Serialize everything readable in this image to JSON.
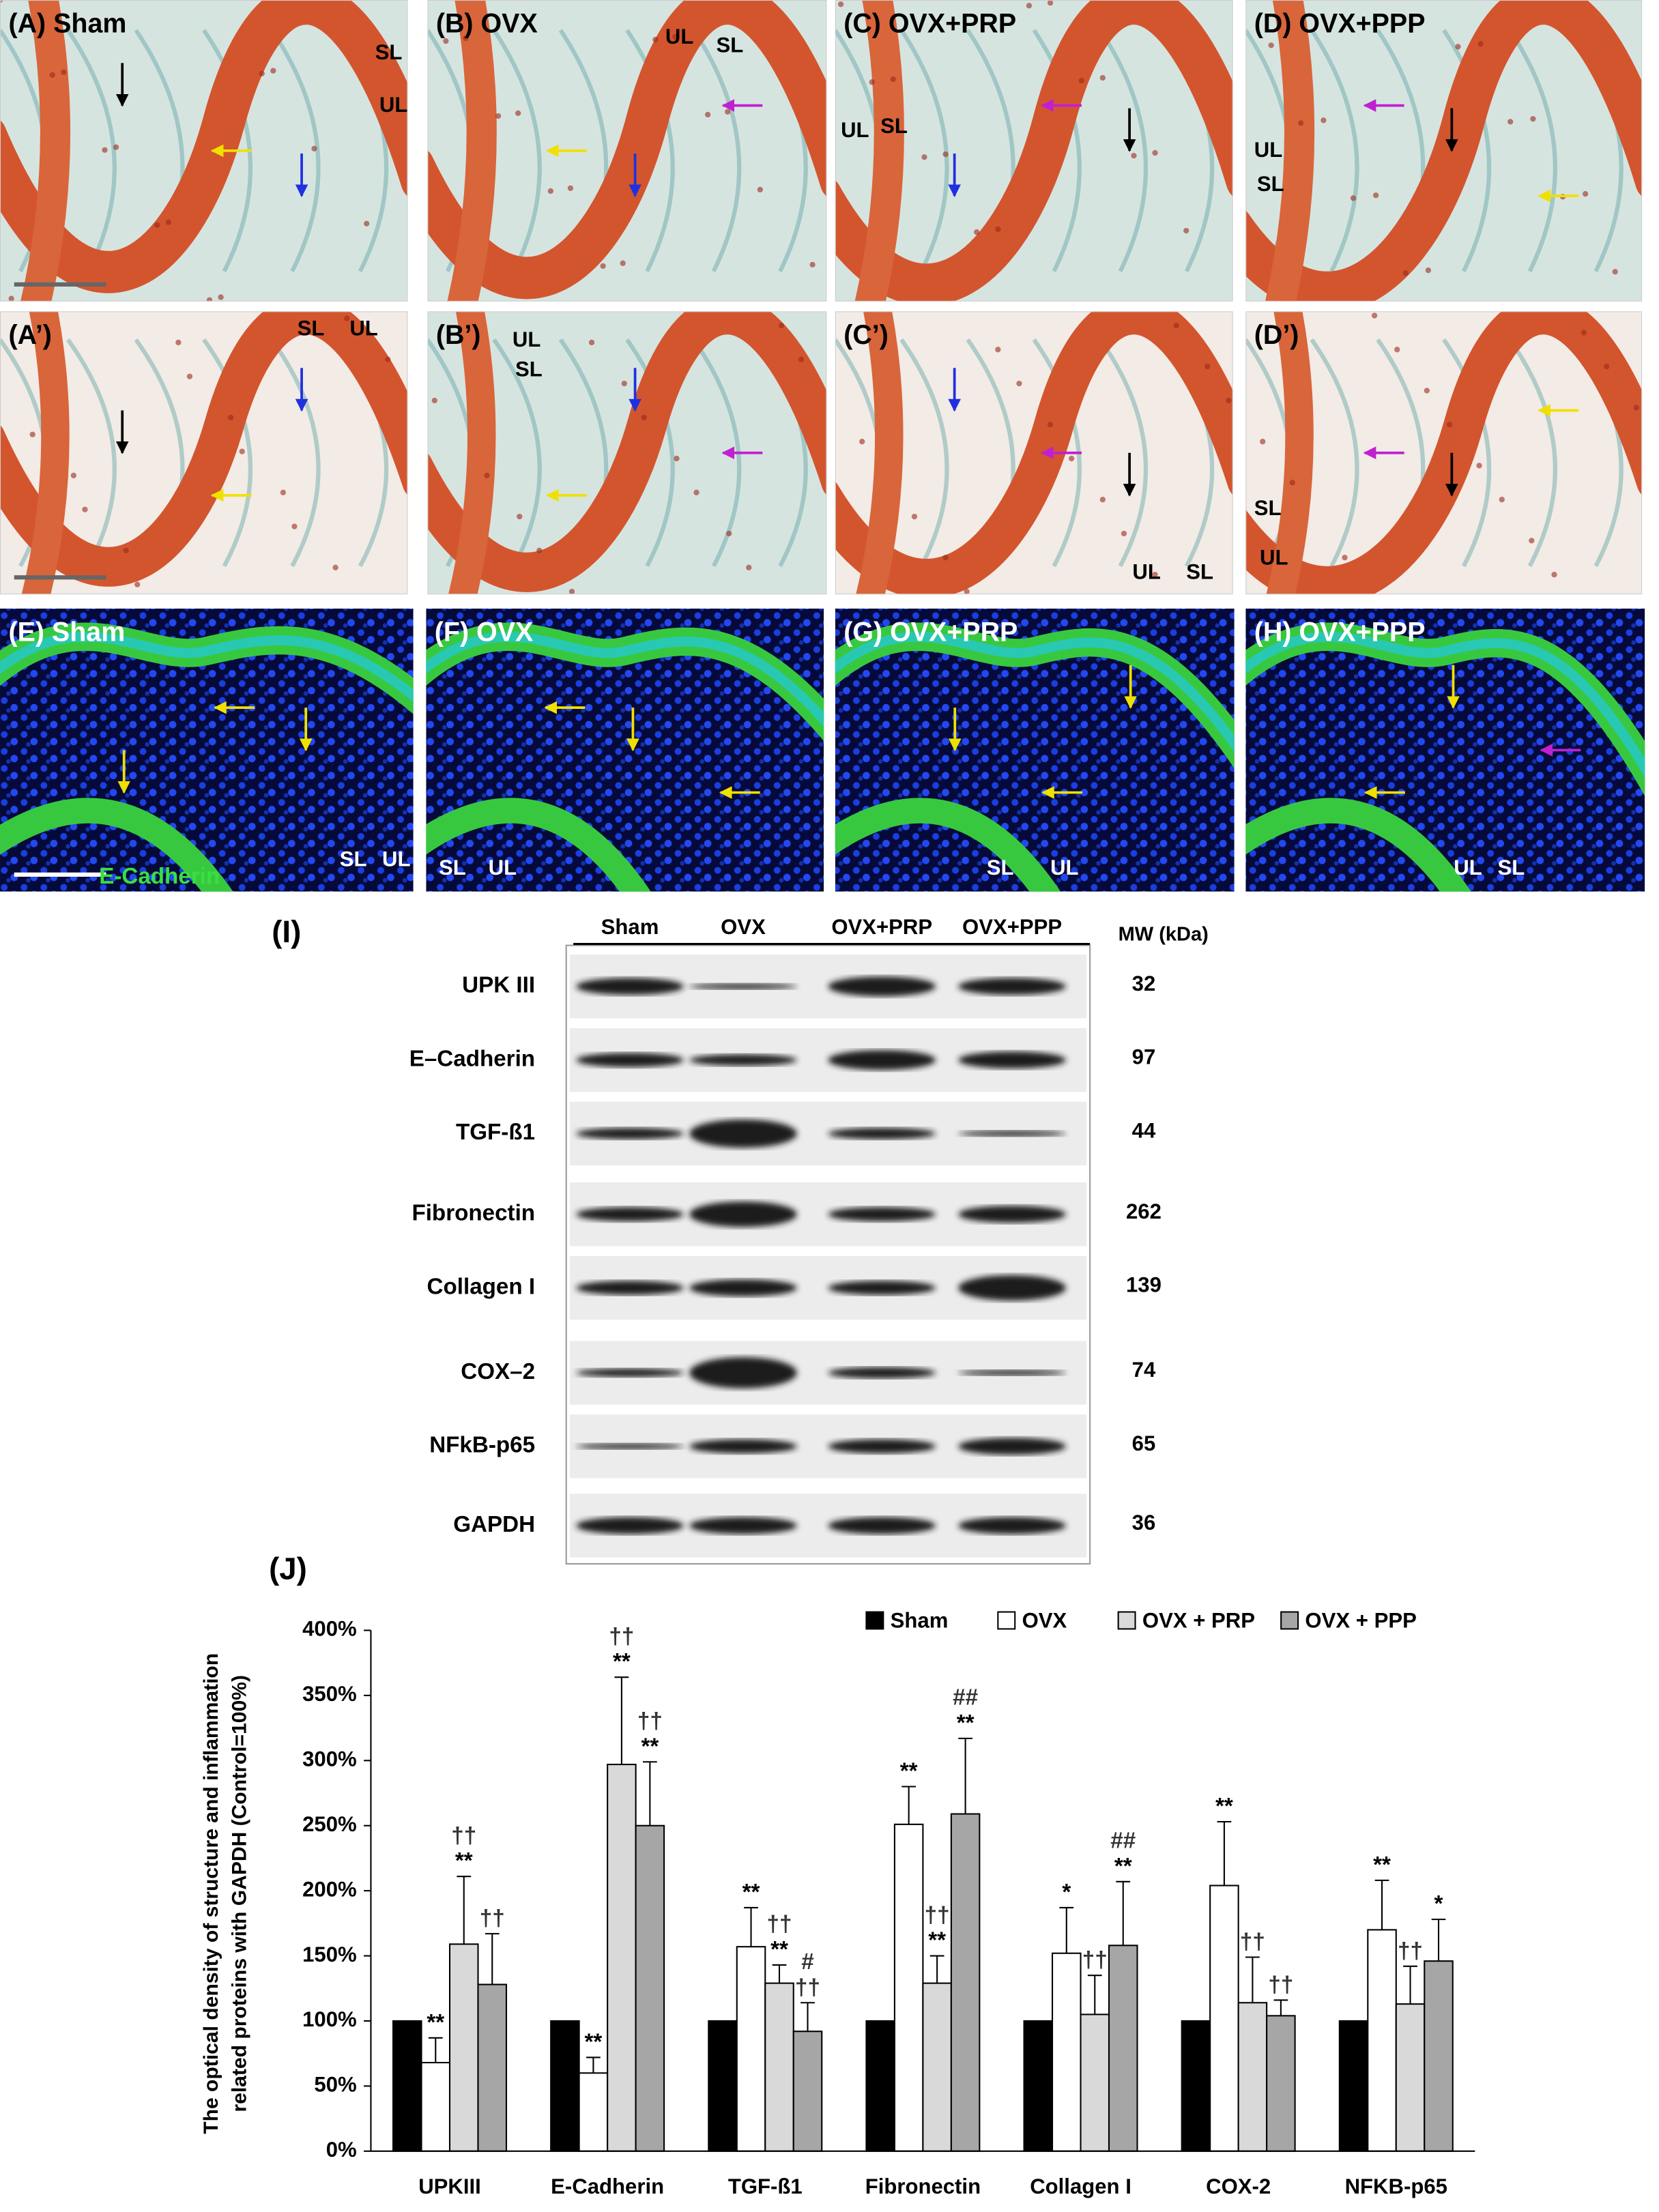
{
  "panels": [
    {
      "label": "(A) Sham",
      "tags": [
        "SL",
        "UL"
      ]
    },
    {
      "label": "(B) OVX",
      "tags": [
        "UL",
        "SL"
      ]
    },
    {
      "label": "(C) OVX+PRP",
      "tags": [
        "UL",
        "SL"
      ]
    },
    {
      "label": "(D) OVX+PPP",
      "tags": [
        "UL",
        "SL"
      ]
    },
    {
      "label": "(A’)",
      "tags": [
        "SL",
        "UL"
      ]
    },
    {
      "label": "(B’)",
      "tags": [
        "UL",
        "SL"
      ]
    },
    {
      "label": "(C’)",
      "tags": [
        "UL",
        "SL"
      ]
    },
    {
      "label": "(D’)",
      "tags": [
        "SL",
        "UL"
      ]
    },
    {
      "label": "(E) Sham",
      "tags": [
        "SL",
        "UL",
        "E-Cadherin"
      ]
    },
    {
      "label": "(F) OVX",
      "tags": [
        "SL",
        "UL"
      ]
    },
    {
      "label": "(G) OVX+PRP",
      "tags": [
        "SL",
        "UL"
      ]
    },
    {
      "label": "(H) OVX+PPP",
      "tags": [
        "UL",
        "SL"
      ]
    }
  ],
  "blot": {
    "label": "(I)",
    "lanes": [
      "Sham",
      "OVX",
      "OVX+PRP",
      "OVX+PPP"
    ],
    "mw_header": "MW (kDa)",
    "rows": [
      {
        "protein": "UPK III",
        "mw": 32
      },
      {
        "protein": "E–Cadherin",
        "mw": 97
      },
      {
        "protein": "TGF-ß1",
        "mw": 44
      },
      {
        "protein": "Fibronectin",
        "mw": 262
      },
      {
        "protein": "Collagen I",
        "mw": 139
      },
      {
        "protein": "COX–2",
        "mw": 74
      },
      {
        "protein": "NFkB-p65",
        "mw": 65
      },
      {
        "protein": "GAPDH",
        "mw": 36
      }
    ]
  },
  "chart_data": {
    "type": "bar",
    "panel_label": "(J)",
    "y_label": [
      "The optical density of  structure and inflammation",
      "related proteins  with GAPDH (Control=100%)"
    ],
    "categories": [
      "UPKIII",
      "E-Cadherin",
      "TGF-ß1",
      "Fibronectin",
      "Collagen I",
      "COX-2",
      "NFKB-p65"
    ],
    "series": [
      {
        "name": "Sham",
        "color": "#000000",
        "values": [
          100,
          100,
          100,
          100,
          100,
          100,
          100
        ]
      },
      {
        "name": "OVX",
        "color": "#ffffff",
        "values": [
          68,
          60,
          157,
          251,
          152,
          204,
          170
        ],
        "errors": [
          19,
          12,
          30,
          29,
          35,
          49,
          38
        ],
        "significance": [
          [
            "**"
          ],
          [
            "**"
          ],
          [
            "**"
          ],
          [
            "**"
          ],
          [
            "*"
          ],
          [
            "**"
          ],
          [
            "**"
          ]
        ]
      },
      {
        "name": "OVX + PRP",
        "color": "#d9d9d9",
        "values": [
          159,
          297,
          129,
          129,
          105,
          114,
          113
        ],
        "errors": [
          52,
          67,
          14,
          21,
          30,
          35,
          29
        ],
        "significance": [
          [
            "††",
            "**"
          ],
          [
            "††",
            "**"
          ],
          [
            "††",
            "**"
          ],
          [
            "††",
            "**"
          ],
          [
            "††"
          ],
          [
            "††"
          ],
          [
            "††"
          ]
        ]
      },
      {
        "name": "OVX + PPP",
        "color": "#a6a6a6",
        "values": [
          128,
          250,
          92,
          259,
          158,
          104,
          146
        ],
        "errors": [
          39,
          49,
          22,
          58,
          49,
          12,
          32
        ],
        "significance": [
          [
            "††"
          ],
          [
            "††",
            "**"
          ],
          [
            "#",
            "††"
          ],
          [
            "##",
            "**"
          ],
          [
            "##",
            "**"
          ],
          [
            "††"
          ],
          [
            "*"
          ]
        ]
      }
    ],
    "ylim": [
      0,
      400
    ],
    "yticks": [
      {
        "value": 0,
        "label": "0%"
      },
      {
        "value": 50,
        "label": "50%"
      },
      {
        "value": 100,
        "label": "100%"
      },
      {
        "value": 150,
        "label": "150%"
      },
      {
        "value": 200,
        "label": "200%"
      },
      {
        "value": 250,
        "label": "250%"
      },
      {
        "value": 300,
        "label": "300%"
      },
      {
        "value": 350,
        "label": "350%"
      },
      {
        "value": 400,
        "label": "400%"
      }
    ],
    "legend": "top-right"
  }
}
